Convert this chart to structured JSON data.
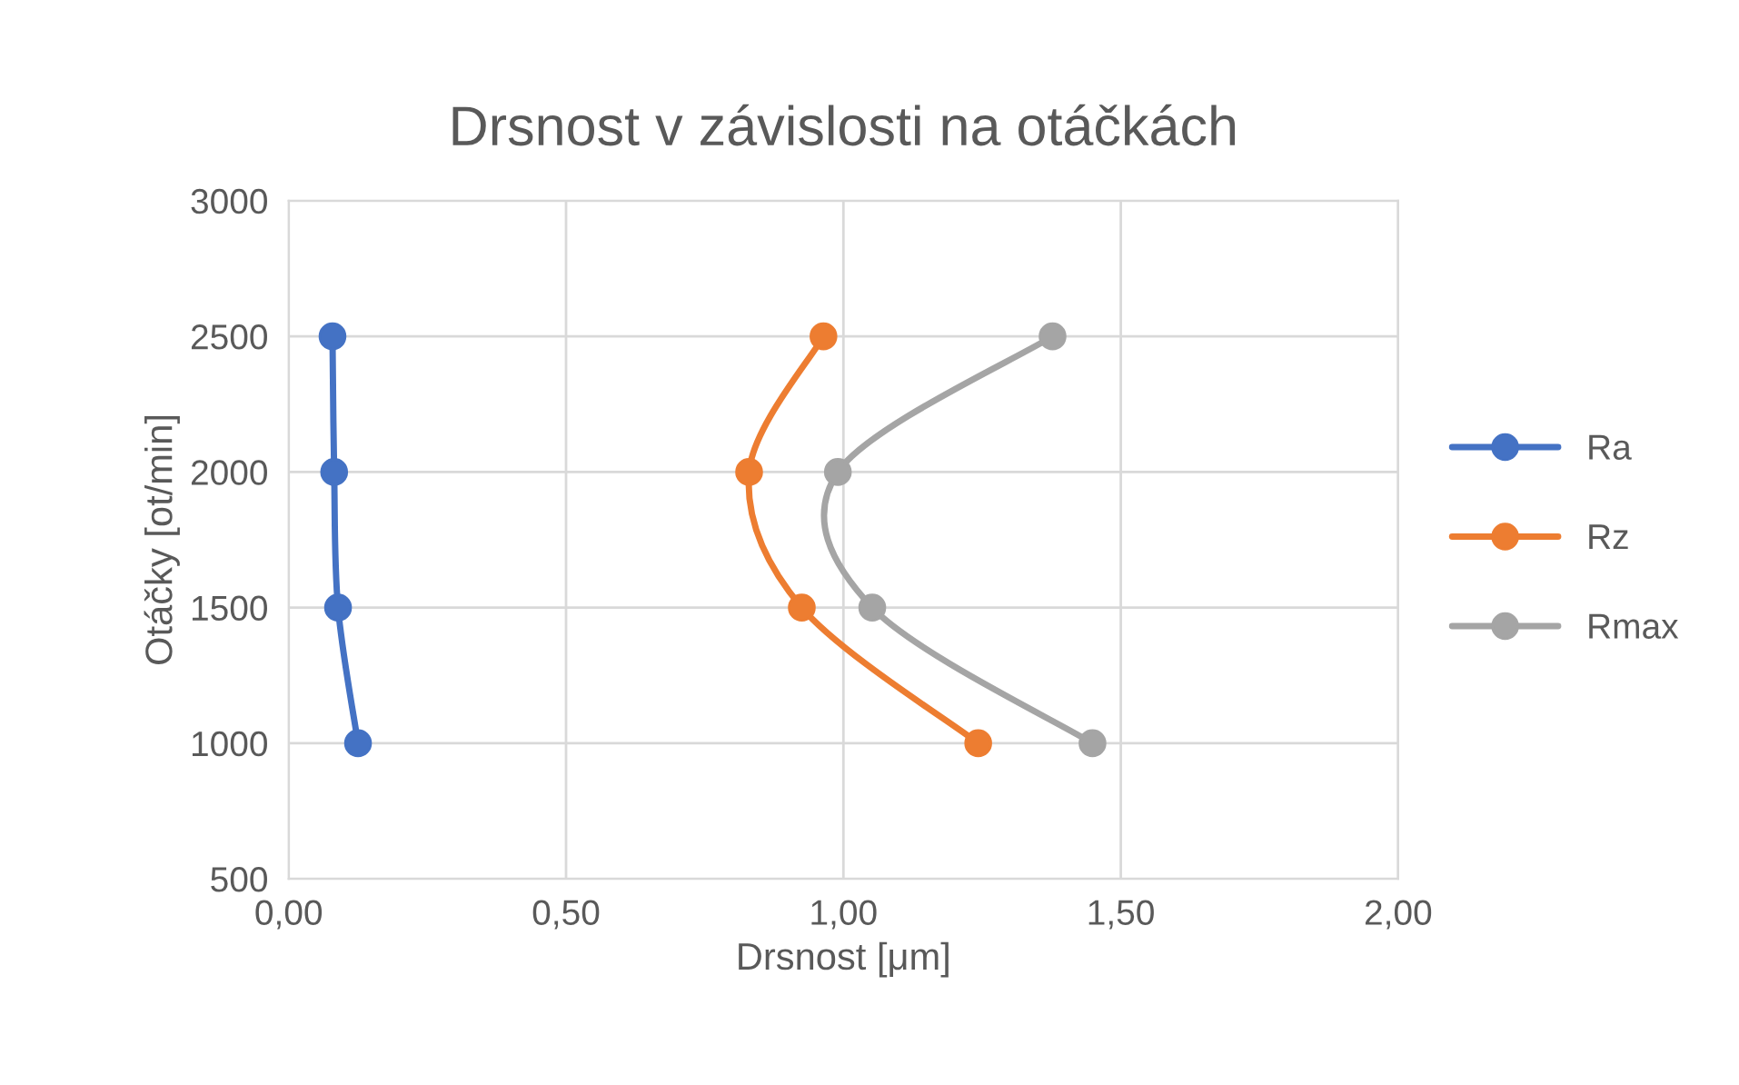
{
  "chart_data": {
    "type": "line",
    "title": "Drsnost v závislosti na otáčkách",
    "xlabel": "Drsnost [μm]",
    "ylabel": "Otáčky [ot/min]",
    "xlim": [
      0,
      2
    ],
    "xticks": [
      {
        "value": 0,
        "label": "0,00"
      },
      {
        "value": 0.5,
        "label": "0,50"
      },
      {
        "value": 1,
        "label": "1,00"
      },
      {
        "value": 1.5,
        "label": "1,50"
      },
      {
        "value": 2,
        "label": "2,00"
      }
    ],
    "ylim": [
      500,
      3000
    ],
    "yticks": [
      500,
      1000,
      1500,
      2000,
      2500,
      3000
    ],
    "grid": true,
    "legend": "right",
    "marker": "circle",
    "line_style": "solid",
    "series": [
      {
        "name": "Ra",
        "color": "#4472c4",
        "x": [
          0.079,
          0.082,
          0.089,
          0.125
        ],
        "values": [
          2500,
          2000,
          1500,
          1000
        ]
      },
      {
        "name": "Rz",
        "color": "#ed7d31",
        "x": [
          0.964,
          0.83,
          0.925,
          1.243
        ],
        "values": [
          2500,
          2000,
          1500,
          1000
        ]
      },
      {
        "name": "Rmax",
        "color": "#a5a5a5",
        "x": [
          1.377,
          0.99,
          1.052,
          1.449
        ],
        "values": [
          2500,
          2000,
          1500,
          1000
        ]
      }
    ]
  }
}
